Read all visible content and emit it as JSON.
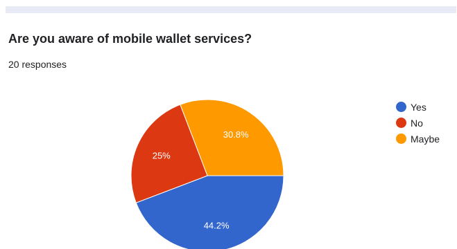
{
  "question": {
    "title": "Are you aware of mobile wallet services?",
    "responses": "20 responses"
  },
  "chart_data": {
    "type": "pie",
    "title": "Are you aware of mobile wallet services?",
    "categories": [
      "Yes",
      "No",
      "Maybe"
    ],
    "values": [
      44.2,
      25,
      30.8
    ],
    "labels": [
      "44.2%",
      "25%",
      "30.8%"
    ],
    "colors": [
      "#3366cc",
      "#dc3912",
      "#ff9900"
    ],
    "legend": "right"
  }
}
